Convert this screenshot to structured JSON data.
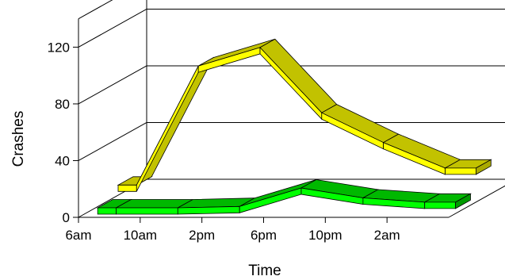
{
  "chart_data": {
    "type": "line",
    "style": "3d-ribbon",
    "title": "",
    "xlabel": "Time",
    "ylabel": "Crashes",
    "ylim": [
      0,
      140
    ],
    "yticks": [
      0,
      40,
      80,
      120
    ],
    "grid": true,
    "categories": [
      "6am",
      "10am",
      "2pm",
      "6pm",
      "10pm",
      "2am"
    ],
    "x": [
      0,
      4,
      8,
      12,
      16,
      20,
      24
    ],
    "series": [
      {
        "colors": {
          "front": "#ffff00",
          "top": "#c2c200",
          "side": "#aaaa00"
        },
        "values": [
          12,
          96,
          109,
          63,
          42,
          24
        ]
      },
      {
        "colors": {
          "front": "#00ff00",
          "top": "#00b800",
          "side": "#009a00"
        },
        "values": [
          4,
          4,
          5,
          18,
          11,
          8
        ]
      }
    ]
  }
}
